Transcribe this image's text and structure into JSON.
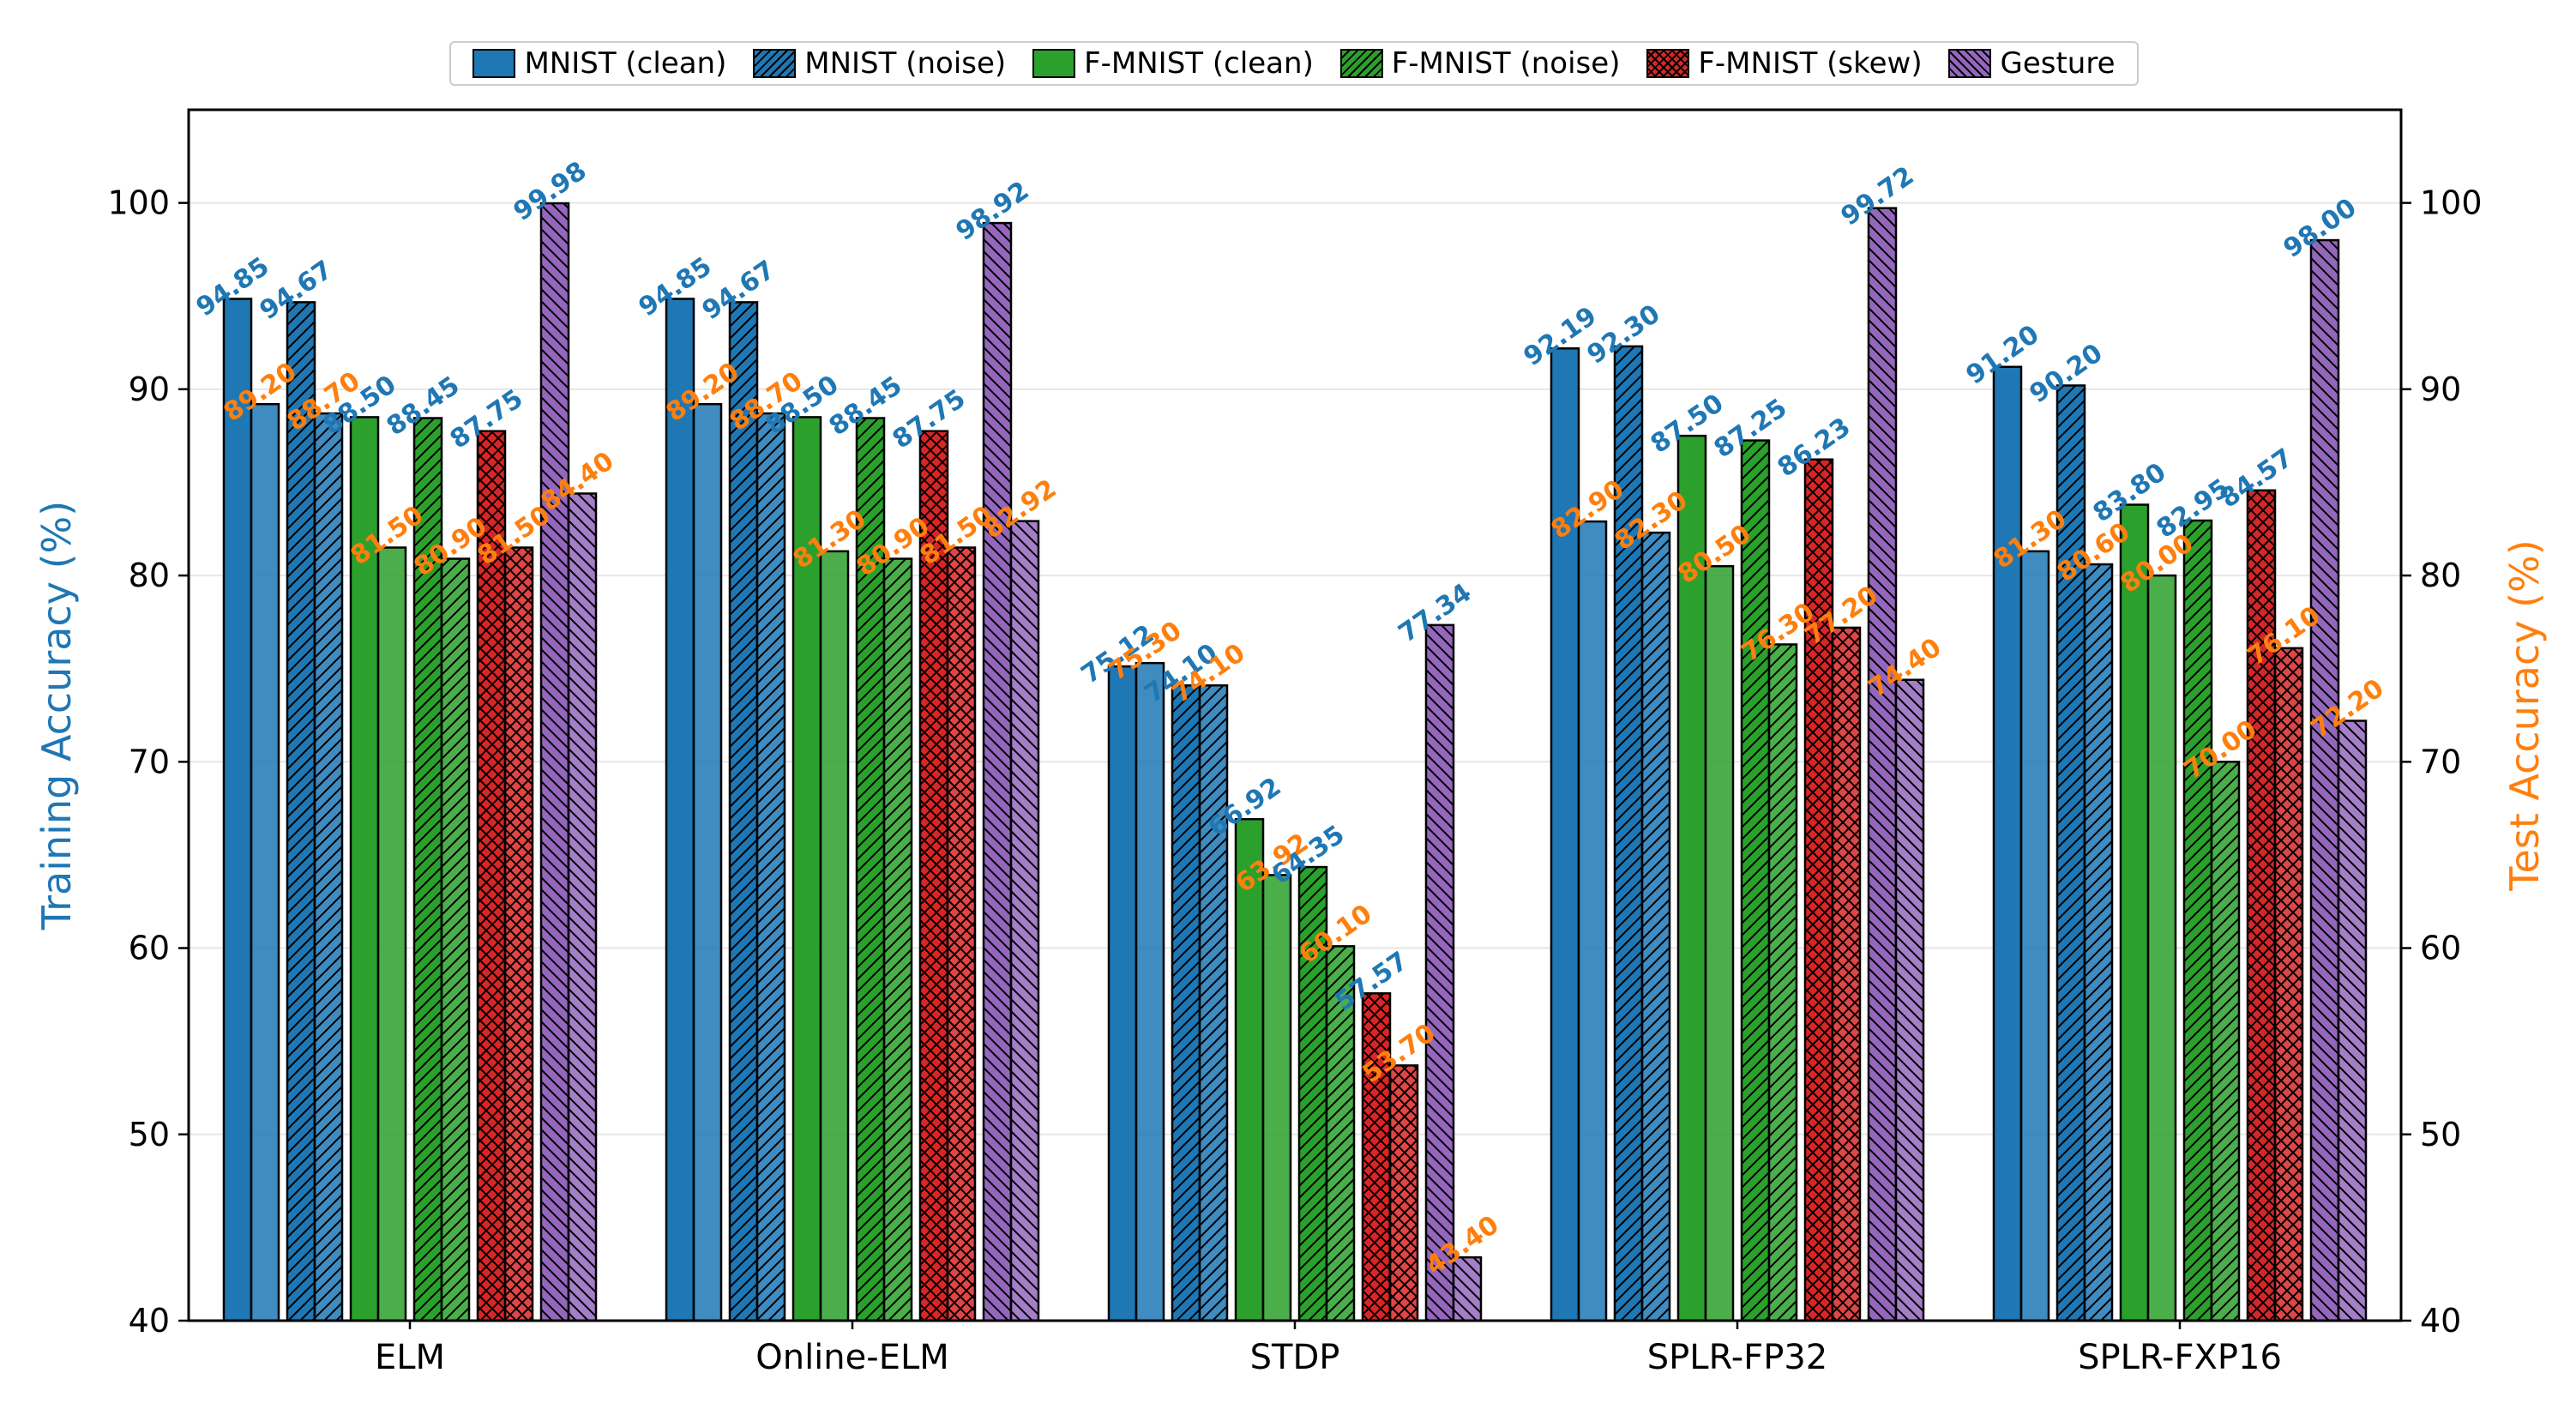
{
  "chart_data": {
    "type": "bar",
    "categories": [
      "ELM",
      "Online-ELM",
      "STDP",
      "SPLR-FP32",
      "SPLR-FXP16"
    ],
    "ylabel_left": "Training Accuracy (%)",
    "ylabel_right": "Test Accuracy (%)",
    "ylim": [
      40,
      105
    ],
    "yticks": [
      40,
      50,
      60,
      70,
      80,
      90,
      100
    ],
    "grid": true,
    "legend_position": "top-center",
    "series": [
      {
        "name": "MNIST (clean)",
        "color": "#1f77b4",
        "hatch": "none",
        "train": [
          94.85,
          94.85,
          75.12,
          92.19,
          91.2
        ],
        "test": [
          89.2,
          89.2,
          75.3,
          82.9,
          81.3
        ]
      },
      {
        "name": "MNIST (noise)",
        "color": "#1f77b4",
        "hatch": "diagonal",
        "train": [
          94.67,
          94.67,
          74.1,
          92.3,
          90.2
        ],
        "test": [
          88.7,
          88.7,
          74.1,
          82.3,
          80.6
        ]
      },
      {
        "name": "F-MNIST (clean)",
        "color": "#2ca02c",
        "hatch": "none",
        "train": [
          88.5,
          88.5,
          66.92,
          87.5,
          83.8
        ],
        "test": [
          81.5,
          81.3,
          63.92,
          80.5,
          80.0
        ]
      },
      {
        "name": "F-MNIST (noise)",
        "color": "#2ca02c",
        "hatch": "diagonal",
        "train": [
          88.45,
          88.45,
          64.35,
          87.25,
          82.95
        ],
        "test": [
          80.9,
          80.9,
          60.1,
          76.3,
          70.0
        ]
      },
      {
        "name": "F-MNIST (skew)",
        "color": "#d62728",
        "hatch": "cross",
        "train": [
          87.75,
          87.75,
          57.57,
          86.23,
          84.57
        ],
        "test": [
          81.5,
          81.5,
          53.7,
          77.2,
          76.1
        ]
      },
      {
        "name": "Gesture",
        "color": "#9467bd",
        "hatch": "backdiagonal",
        "train": [
          99.98,
          98.92,
          77.34,
          99.72,
          98.0
        ],
        "test": [
          84.4,
          82.92,
          43.4,
          74.4,
          72.2
        ]
      }
    ],
    "label_colors": {
      "train": "#1f77b4",
      "test": "#ff7f0e"
    }
  }
}
